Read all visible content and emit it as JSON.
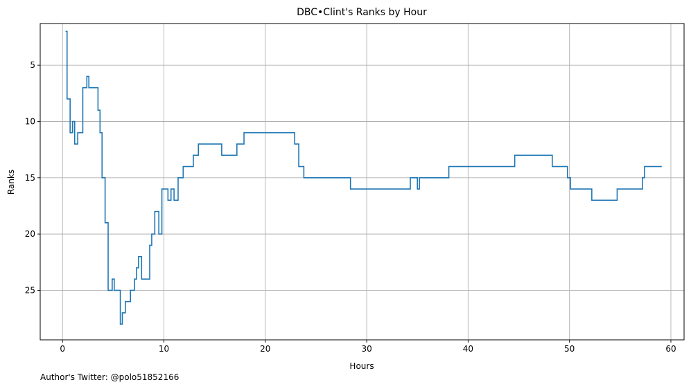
{
  "chart_data": {
    "type": "line",
    "step": true,
    "title": "DBC•Clint's Ranks by Hour",
    "xlabel": "Hours",
    "ylabel": "Ranks",
    "xlim": [
      -2.2,
      61.3
    ],
    "ylim": [
      29.4,
      1.3
    ],
    "y_inverted": true,
    "xticks": [
      0,
      10,
      20,
      30,
      40,
      50,
      60
    ],
    "yticks": [
      5,
      10,
      15,
      20,
      25
    ],
    "grid": true,
    "color": "#1f77b4",
    "series": [
      {
        "x": [
          0.3,
          0.45,
          0.75,
          1.0,
          1.2,
          1.5,
          2.0,
          2.4,
          2.6,
          3.5,
          3.7,
          3.9,
          4.2,
          4.5,
          4.9,
          5.1,
          5.7,
          5.9,
          6.2,
          6.7,
          7.1,
          7.3,
          7.5,
          7.8,
          8.6,
          8.8,
          9.1,
          9.5,
          9.8,
          10.0,
          10.4,
          10.7,
          11.0,
          11.4,
          11.9,
          12.9,
          13.4,
          15.7,
          17.2,
          17.9,
          22.9,
          23.3,
          23.8,
          28.4,
          34.3,
          35.0,
          35.2,
          38.1,
          44.6,
          48.3,
          49.8,
          50.1,
          52.2,
          54.7,
          57.2,
          57.4,
          59.1
        ],
        "y": [
          2,
          8,
          11,
          10,
          12,
          11,
          7,
          6,
          7,
          9,
          11,
          15,
          19,
          25,
          24,
          25,
          28,
          27,
          26,
          25,
          24,
          23,
          22,
          24,
          21,
          20,
          18,
          20,
          16,
          16,
          17,
          16,
          17,
          15,
          14,
          13,
          12,
          13,
          12,
          11,
          12,
          14,
          15,
          16,
          15,
          16,
          15,
          14,
          13,
          14,
          15,
          16,
          17,
          16,
          15,
          14,
          14
        ]
      }
    ]
  },
  "footer_text": "Author's Twitter: @polo51852166"
}
